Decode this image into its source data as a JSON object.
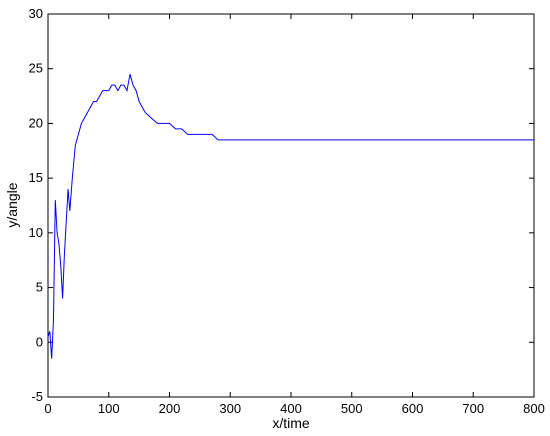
{
  "chart_data": {
    "type": "line",
    "xlabel": "x/time",
    "ylabel": "y/angle",
    "xlim": [
      0,
      800
    ],
    "ylim": [
      -5,
      30
    ],
    "xticks": [
      0,
      100,
      200,
      300,
      400,
      500,
      600,
      700,
      800
    ],
    "yticks": [
      -5,
      0,
      5,
      10,
      15,
      20,
      25,
      30
    ],
    "grid": false,
    "line_color": "#0000ff",
    "series": [
      {
        "x": [
          0,
          3,
          6,
          9,
          12,
          15,
          18,
          21,
          24,
          27,
          30,
          33,
          36,
          40,
          45,
          50,
          55,
          60,
          65,
          70,
          75,
          80,
          85,
          90,
          95,
          100,
          105,
          110,
          115,
          120,
          125,
          130,
          135,
          140,
          145,
          150,
          160,
          170,
          180,
          190,
          200,
          210,
          220,
          230,
          240,
          250,
          260,
          270,
          280,
          290,
          300,
          320,
          340,
          360,
          380,
          400,
          420,
          440,
          460,
          480,
          500,
          520,
          540,
          560,
          580,
          600,
          620,
          640,
          660,
          680,
          700,
          720,
          740,
          760,
          780,
          800
        ],
        "y": [
          0.5,
          1,
          -1.5,
          2,
          13,
          10,
          9,
          7,
          4,
          8,
          11,
          14,
          12,
          15,
          18,
          19,
          20,
          20.5,
          21,
          21.5,
          22,
          22,
          22.5,
          23,
          23,
          23,
          23.5,
          23.5,
          23,
          23.5,
          23.5,
          23,
          24.5,
          23.5,
          23,
          22,
          21,
          20.5,
          20,
          20,
          20,
          19.5,
          19.5,
          19,
          19,
          19,
          19,
          19,
          18.5,
          18.5,
          18.5,
          18.5,
          18.5,
          18.5,
          18.5,
          18.5,
          18.5,
          18.5,
          18.5,
          18.5,
          18.5,
          18.5,
          18.5,
          18.5,
          18.5,
          18.5,
          18.5,
          18.5,
          18.5,
          18.5,
          18.5,
          18.5,
          18.5,
          18.5,
          18.5,
          18.5
        ]
      }
    ]
  }
}
